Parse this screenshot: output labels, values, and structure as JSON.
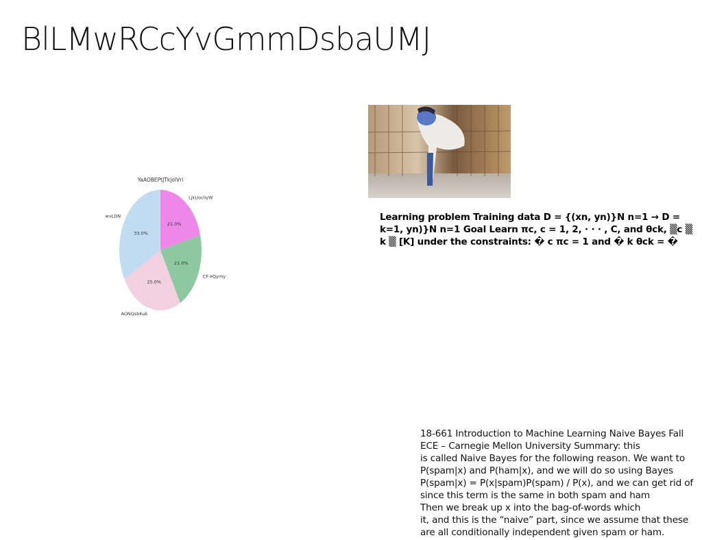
{
  "slide": {
    "title": "BlLMwRCcYvGmmDsbaUMJ"
  },
  "chart_data": {
    "type": "pie",
    "title": "YaAOBEPtJTkjolVri",
    "slices": [
      {
        "label": "LjkUocliyW",
        "value": 21.0,
        "pct_label": "21.0%",
        "color": "#ee88e8"
      },
      {
        "label": "CF eQymy",
        "value": 21.0,
        "pct_label": "21.0%",
        "color": "#8cc9a0"
      },
      {
        "label": "AONQsbKuk",
        "value": 25.0,
        "pct_label": "25.0%",
        "color": "#f3d0e0"
      },
      {
        "label": "wvLDN",
        "value": 33.0,
        "pct_label": "33.0%",
        "color": "#bfdcf0"
      }
    ],
    "start": "12 o'clock",
    "direction": "clockwise"
  },
  "photo": {
    "description_icon": "person-handstand-photo"
  },
  "bold_text": {
    "line1": "Learning problem Training data D = {(xn, yn)}N n=1 → D =",
    "line2": "k=1, yn)}N n=1 Goal Learn πc, c = 1, 2, · · · , C, and θck, ▒c ▒",
    "line3": "k ▒ [K] under the constraints: � c πc = 1 and � k θck = �"
  },
  "summary_text": {
    "lines": [
      "18-661 Introduction to Machine Learning Naive Bayes Fall",
      "ECE – Carnegie Mellon University Summary: this",
      "is called Naive Bayes for the following reason. We want to",
      "P(spam|x) and P(ham|x), and we will do so using Bayes",
      "P(spam|x) = P(x|spam)P(spam) / P(x), and we can get rid of",
      "since this term is the same in both spam and ham",
      "Then we break up x into the bag-of-words which",
      "it, and this is the “naive” part, since we assume that these",
      "are all conditionally independent given spam or ham."
    ]
  }
}
